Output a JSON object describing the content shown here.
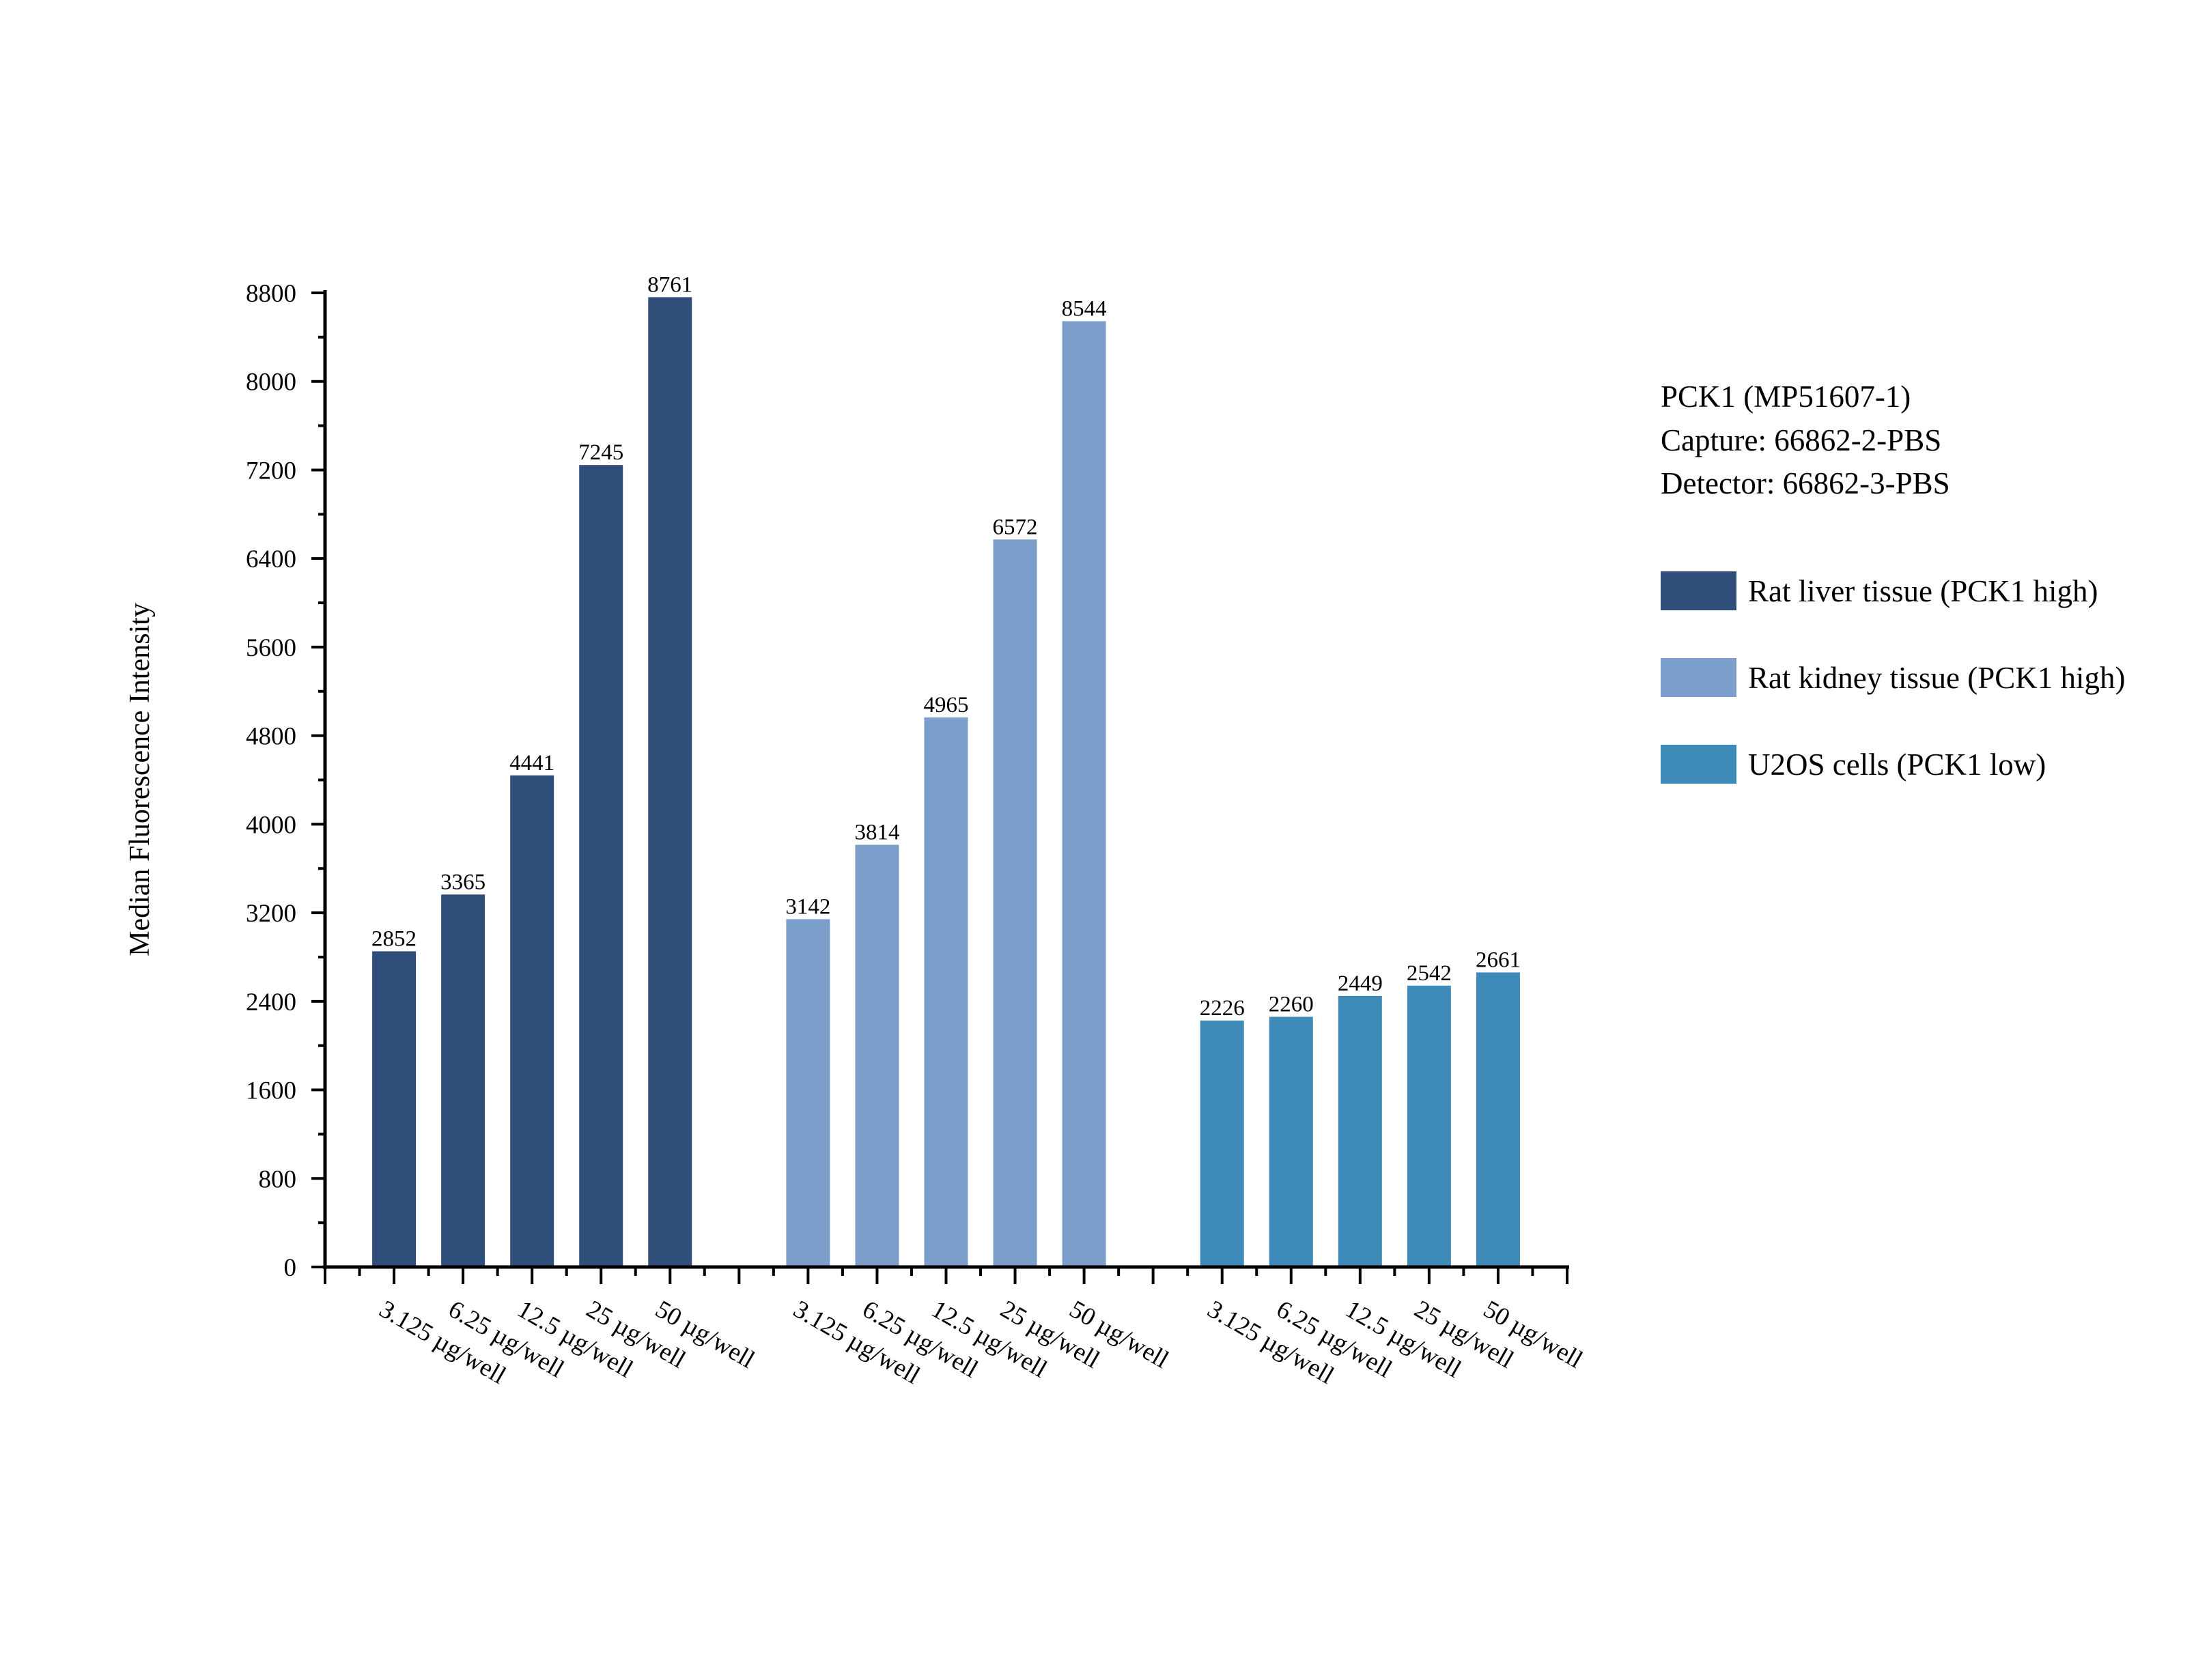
{
  "chart_data": {
    "type": "bar",
    "title": "",
    "xlabel": "",
    "ylabel": "Median Fluorescence Intensity",
    "ylim": [
      0,
      8800
    ],
    "yticks": [
      0,
      800,
      1600,
      2400,
      3200,
      4000,
      4800,
      5600,
      6400,
      7200,
      8000,
      8800
    ],
    "grid": false,
    "legend_placement": "right",
    "annotation_lines": [
      "PCK1 (MP51607-1)",
      "Capture: 66862-2-PBS",
      "Detector: 66862-3-PBS"
    ],
    "categories": [
      "3.125 µg/well",
      "6.25 µg/well",
      "12.5 µg/well",
      "25 µg/well",
      "50 µg/well"
    ],
    "series": [
      {
        "name": "Rat liver tissue (PCK1 high)",
        "color": "#2f4f7a",
        "values": [
          2852,
          3365,
          4441,
          7245,
          8761
        ]
      },
      {
        "name": "Rat kidney tissue (PCK1 high)",
        "color": "#7b9ecb",
        "values": [
          3142,
          3814,
          4965,
          6572,
          8544
        ]
      },
      {
        "name": "U2OS cells (PCK1 low)",
        "color": "#3e8ab8",
        "values": [
          2226,
          2260,
          2449,
          2542,
          2661
        ]
      }
    ]
  }
}
